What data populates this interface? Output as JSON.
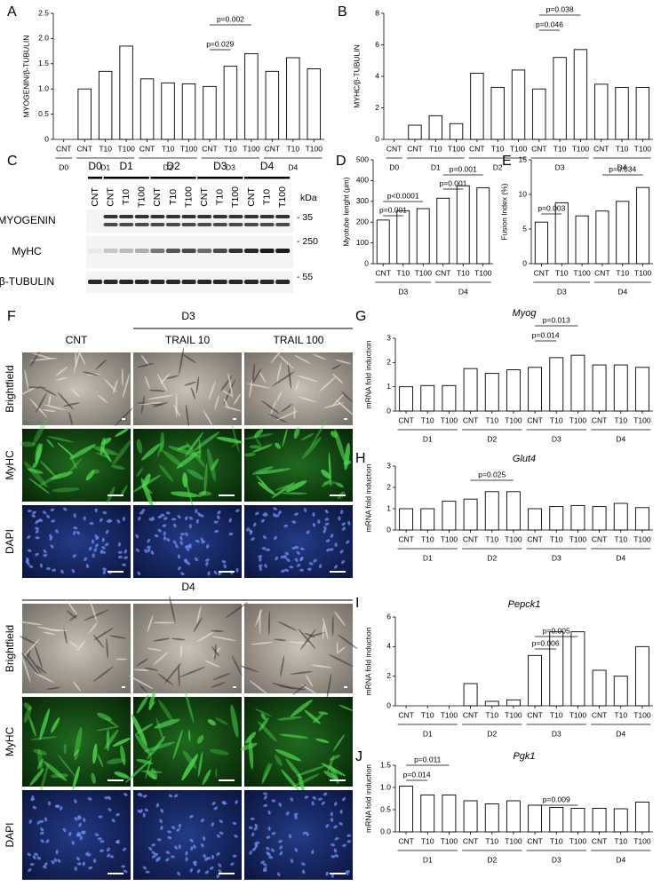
{
  "chart_data": [
    {
      "type": "bar",
      "panel": "A",
      "ylabel": "MYOGENIN/β-TUBULIN",
      "color": "#ffffff",
      "ylim": [
        0,
        2.5
      ],
      "yticks": [
        0,
        0.5,
        {
          "value": 1,
          "label": "1.0"
        },
        1.5,
        {
          "value": 2,
          "label": "2.0"
        },
        2.5
      ],
      "groups": [
        {
          "name": "D0",
          "categories": [
            "CNT"
          ],
          "values": [
            0
          ]
        },
        {
          "name": "D1",
          "categories": [
            "CNT",
            "T10",
            "T100"
          ],
          "values": [
            1.0,
            1.35,
            1.85
          ]
        },
        {
          "name": "D2",
          "categories": [
            "CNT",
            "T10",
            "T100"
          ],
          "values": [
            1.2,
            1.12,
            1.1
          ]
        },
        {
          "name": "D3",
          "categories": [
            "CNT",
            "T10",
            "T100"
          ],
          "values": [
            1.05,
            1.45,
            1.7
          ]
        },
        {
          "name": "D4",
          "categories": [
            "CNT",
            "T10",
            "T100"
          ],
          "values": [
            1.35,
            1.62,
            1.4
          ]
        }
      ],
      "annotations": [
        "p=0.029",
        "p=0.002"
      ]
    },
    {
      "type": "bar",
      "panel": "B",
      "ylabel": "MYHC/β-TUBULIN",
      "color": "#ffffff",
      "ylim": [
        0,
        8
      ],
      "yticks": [
        0,
        2,
        4,
        6,
        8
      ],
      "groups": [
        {
          "name": "D0",
          "categories": [
            "CNT"
          ],
          "values": [
            0
          ]
        },
        {
          "name": "D1",
          "categories": [
            "CNT",
            "T10",
            "T100"
          ],
          "values": [
            0.9,
            1.5,
            1.0
          ]
        },
        {
          "name": "D2",
          "categories": [
            "CNT",
            "T10",
            "T100"
          ],
          "values": [
            4.2,
            3.3,
            4.4
          ]
        },
        {
          "name": "D3",
          "categories": [
            "CNT",
            "T10",
            "T100"
          ],
          "values": [
            3.2,
            5.2,
            5.7
          ]
        },
        {
          "name": "D4",
          "categories": [
            "CNT",
            "T10",
            "T100"
          ],
          "values": [
            3.5,
            3.3,
            3.3
          ]
        }
      ],
      "annotations": [
        "p=0.046",
        "p=0.038"
      ]
    },
    {
      "type": "bar",
      "panel": "D",
      "ylabel": "Myotube lenght (μm)",
      "color": "#ffffff",
      "ylim": [
        0,
        500
      ],
      "yticks": [
        0,
        100,
        200,
        300,
        400,
        500
      ],
      "groups": [
        {
          "name": "D3",
          "categories": [
            "CNT",
            "T10",
            "T100"
          ],
          "values": [
            210,
            255,
            265
          ]
        },
        {
          "name": "D4",
          "categories": [
            "CNT",
            "T10",
            "T100"
          ],
          "values": [
            315,
            375,
            365
          ]
        }
      ],
      "annotations": [
        "p=0.001",
        "p<0.0001",
        "p=0.001",
        "p=0.001"
      ]
    },
    {
      "type": "bar",
      "panel": "E",
      "ylabel": "Fusion Index (%)",
      "color": "#ffffff",
      "ylim": [
        0,
        15
      ],
      "yticks": [
        0,
        5,
        10,
        15
      ],
      "groups": [
        {
          "name": "D3",
          "categories": [
            "CNT",
            "T10",
            "T100"
          ],
          "values": [
            6,
            8.8,
            6.9
          ]
        },
        {
          "name": "D4",
          "categories": [
            "CNT",
            "T10",
            "T100"
          ],
          "values": [
            7.6,
            9,
            11
          ]
        }
      ],
      "annotations": [
        "p=0.003",
        "p=0.034"
      ]
    },
    {
      "type": "bar",
      "panel": "G",
      "title": "Myog",
      "ylabel": "mRNA fold induction",
      "color": "#ffffff",
      "ylim": [
        0,
        3
      ],
      "yticks": [
        0,
        1,
        2,
        3
      ],
      "groups": [
        {
          "name": "D1",
          "categories": [
            "CNT",
            "T10",
            "T100"
          ],
          "values": [
            1.0,
            1.05,
            1.05
          ]
        },
        {
          "name": "D2",
          "categories": [
            "CNT",
            "T10",
            "T100"
          ],
          "values": [
            1.75,
            1.55,
            1.7
          ]
        },
        {
          "name": "D3",
          "categories": [
            "CNT",
            "T10",
            "T100"
          ],
          "values": [
            1.8,
            2.2,
            2.3
          ]
        },
        {
          "name": "D4",
          "categories": [
            "CNT",
            "T10",
            "T100"
          ],
          "values": [
            1.9,
            1.9,
            1.8
          ]
        }
      ],
      "annotations": [
        "p=0.014",
        "p=0.013"
      ]
    },
    {
      "type": "bar",
      "panel": "H",
      "title": "Glut4",
      "ylabel": "mRNA fold induction",
      "color": "#ffffff",
      "ylim": [
        0,
        3
      ],
      "yticks": [
        0,
        1,
        2,
        3
      ],
      "groups": [
        {
          "name": "D1",
          "categories": [
            "CNT",
            "T10",
            "T100"
          ],
          "values": [
            1.0,
            1.0,
            1.35
          ]
        },
        {
          "name": "D2",
          "categories": [
            "CNT",
            "T10",
            "T100"
          ],
          "values": [
            1.45,
            1.8,
            1.8
          ]
        },
        {
          "name": "D3",
          "categories": [
            "CNT",
            "T10",
            "T100"
          ],
          "values": [
            1.0,
            1.1,
            1.15
          ]
        },
        {
          "name": "D4",
          "categories": [
            "CNT",
            "T10",
            "T100"
          ],
          "values": [
            1.1,
            1.25,
            1.05
          ]
        }
      ],
      "annotations": [
        "p=0.025"
      ]
    },
    {
      "type": "bar",
      "panel": "I",
      "title": "Pepck1",
      "ylabel": "mRNA fold induction",
      "color": "#ffffff",
      "ylim": [
        0,
        6
      ],
      "yticks": [
        0,
        2,
        4,
        6
      ],
      "groups": [
        {
          "name": "D1",
          "categories": [
            "CNT",
            "T10",
            "T100"
          ],
          "values": [
            0,
            0,
            0
          ]
        },
        {
          "name": "D2",
          "categories": [
            "CNT",
            "T10",
            "T100"
          ],
          "values": [
            1.5,
            0.3,
            0.4
          ]
        },
        {
          "name": "D3",
          "categories": [
            "CNT",
            "T10",
            "T100"
          ],
          "values": [
            3.4,
            5.0,
            5.0
          ]
        },
        {
          "name": "D4",
          "categories": [
            "CNT",
            "T10",
            "T100"
          ],
          "values": [
            2.4,
            2.0,
            4.0
          ]
        }
      ],
      "annotations": [
        "p=0.005",
        "p=0.006"
      ]
    },
    {
      "type": "bar",
      "panel": "J",
      "title": "Pgk1",
      "ylabel": "mRNA fold induction",
      "color": "#ffffff",
      "ylim": [
        0,
        1.5
      ],
      "yticks": [
        {
          "value": 0,
          "label": "0.0"
        },
        0.5,
        {
          "value": 1,
          "label": "1.0"
        },
        1.5
      ],
      "groups": [
        {
          "name": "D1",
          "categories": [
            "CNT",
            "T10",
            "T100"
          ],
          "values": [
            1.03,
            0.83,
            0.83
          ]
        },
        {
          "name": "D2",
          "categories": [
            "CNT",
            "T10",
            "T100"
          ],
          "values": [
            0.7,
            0.63,
            0.7
          ]
        },
        {
          "name": "D3",
          "categories": [
            "CNT",
            "T10",
            "T100"
          ],
          "values": [
            0.6,
            0.55,
            0.53
          ]
        },
        {
          "name": "D4",
          "categories": [
            "CNT",
            "T10",
            "T100"
          ],
          "values": [
            0.53,
            0.52,
            0.67
          ]
        }
      ],
      "annotations": [
        "p=0.011",
        "p=0.014",
        "p=0.009"
      ]
    }
  ],
  "western_blot": {
    "panel": "C",
    "days": [
      "D0",
      "D1",
      "D2",
      "D3",
      "D4"
    ],
    "lanes": [
      "CNT",
      "CNT",
      "T10",
      "T100",
      "CNT",
      "T10",
      "T100",
      "CNT",
      "T10",
      "T100",
      "CNT",
      "T10",
      "T100"
    ],
    "unit": "kDa",
    "rows": [
      {
        "name": "MYOGENIN",
        "marker": "- 35"
      },
      {
        "name": "MyHC",
        "marker": "- 250"
      },
      {
        "name": "β-TUBULIN",
        "marker": "- 55"
      }
    ]
  },
  "micrographs": {
    "panel": "F",
    "blocks": [
      "D3",
      "D4"
    ],
    "columns": [
      "CNT",
      "TRAIL 10",
      "TRAIL 100"
    ],
    "rows": [
      "Brightfield",
      "MyHC",
      "DAPI"
    ]
  }
}
